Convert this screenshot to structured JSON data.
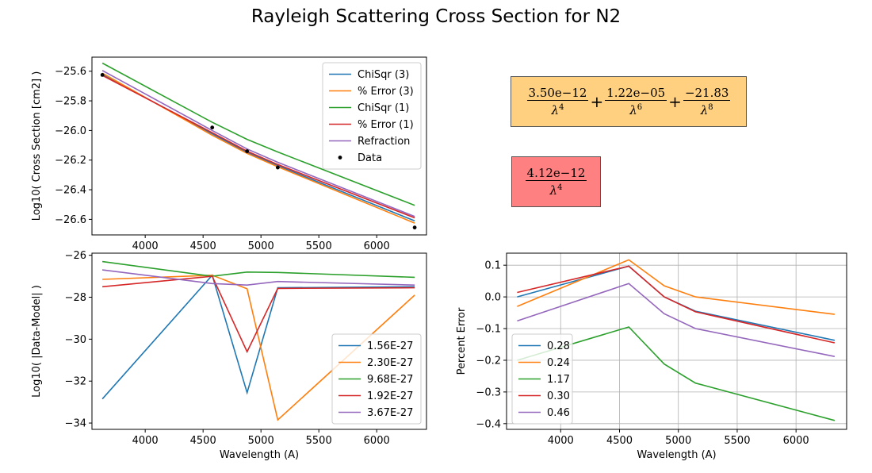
{
  "suptitle": "Rayleigh Scattering Cross Section for N2",
  "equations": {
    "fit3": {
      "terms": [
        {
          "num": "3.50e−12",
          "den": "λ",
          "pow": "4"
        },
        {
          "num": "1.22e−05",
          "den": "λ",
          "pow": "6"
        },
        {
          "num": "−21.83",
          "den": "λ",
          "pow": "8"
        }
      ],
      "plus": "+",
      "color": "#ffd080"
    },
    "fit1": {
      "terms": [
        {
          "num": "4.12e−12",
          "den": "λ",
          "pow": "4"
        }
      ],
      "color": "#ff8080"
    }
  },
  "chart_data": [
    {
      "type": "line",
      "id": "top-left",
      "xlabel": "",
      "ylabel": "Log10( Cross Section [cm2] )",
      "xlim": [
        3540,
        6430
      ],
      "ylim": [
        -26.705,
        -25.505
      ],
      "xticks": [
        4000,
        4500,
        5000,
        5500,
        6000
      ],
      "yticks": [
        -25.6,
        -25.8,
        -26.0,
        -26.2,
        -26.4,
        -26.6
      ],
      "ytick_labels": [
        "−25.6",
        "−25.8",
        "−26.0",
        "−26.2",
        "−26.4",
        "−26.6"
      ],
      "grid": false,
      "legend_loc": "upper-right",
      "x": [
        3630,
        4579,
        4880,
        5145,
        6328
      ],
      "series": [
        {
          "name": "ChiSqr (3)",
          "color": "#1f77b4",
          "values": [
            -25.622,
            -26.022,
            -26.148,
            -26.238,
            -26.61
          ]
        },
        {
          "name": "% Error (3)",
          "color": "#ff7f0e",
          "values": [
            -25.613,
            -26.032,
            -26.155,
            -26.245,
            -26.625
          ]
        },
        {
          "name": "ChiSqr (1)",
          "color": "#2ca02c",
          "values": [
            -25.545,
            -25.945,
            -26.06,
            -26.145,
            -26.505
          ]
        },
        {
          "name": "% Error (1)",
          "color": "#d62728",
          "values": [
            -25.628,
            -26.015,
            -26.14,
            -26.23,
            -26.59
          ]
        },
        {
          "name": "Refraction",
          "color": "#9467bd",
          "values": [
            -25.595,
            -26.0,
            -26.125,
            -26.215,
            -26.58
          ]
        }
      ],
      "points": {
        "name": "Data",
        "color": "#000000",
        "x": [
          3630,
          4579,
          4880,
          5145,
          6328
        ],
        "y": [
          -25.625,
          -25.98,
          -26.14,
          -26.25,
          -26.655
        ]
      }
    },
    {
      "type": "line",
      "id": "bottom-left",
      "xlabel": "Wavelength (A)",
      "ylabel": "Log10( |Data-Model| )",
      "xlim": [
        3540,
        6430
      ],
      "ylim": [
        -34.3,
        -25.9
      ],
      "xticks": [
        4000,
        4500,
        5000,
        5500,
        6000
      ],
      "yticks": [
        -26,
        -28,
        -30,
        -32,
        -34
      ],
      "ytick_labels": [
        "−26",
        "−28",
        "−30",
        "−32",
        "−34"
      ],
      "grid": false,
      "legend_loc": "lower-right",
      "x": [
        3630,
        4579,
        4880,
        5145,
        6328
      ],
      "series": [
        {
          "name": "1.56E-27",
          "color": "#1f77b4",
          "values": [
            -32.85,
            -26.95,
            -32.55,
            -27.55,
            -27.5
          ]
        },
        {
          "name": "2.30E-27",
          "color": "#ff7f0e",
          "values": [
            -27.15,
            -26.95,
            -27.6,
            -33.85,
            -27.9
          ]
        },
        {
          "name": "9.68E-27",
          "color": "#2ca02c",
          "values": [
            -26.3,
            -27.0,
            -26.8,
            -26.82,
            -27.05
          ]
        },
        {
          "name": "1.92E-27",
          "color": "#d62728",
          "values": [
            -27.5,
            -27.0,
            -30.6,
            -27.58,
            -27.55
          ]
        },
        {
          "name": "3.67E-27",
          "color": "#9467bd",
          "values": [
            -26.7,
            -27.35,
            -27.42,
            -27.25,
            -27.42
          ]
        }
      ]
    },
    {
      "type": "line",
      "id": "bottom-right",
      "xlabel": "Wavelength (A)",
      "ylabel": "Percent Error",
      "xlim": [
        3540,
        6430
      ],
      "ylim": [
        -0.418,
        0.138
      ],
      "xticks": [
        4000,
        4500,
        5000,
        5500,
        6000
      ],
      "yticks": [
        0.1,
        0.0,
        -0.1,
        -0.2,
        -0.3,
        -0.4
      ],
      "ytick_labels": [
        "0.1",
        "0.0",
        "−0.1",
        "−0.2",
        "−0.3",
        "−0.4"
      ],
      "grid": true,
      "legend_loc": "lower-left",
      "x": [
        3630,
        4579,
        4880,
        5145,
        6328
      ],
      "series": [
        {
          "name": "0.28",
          "color": "#1f77b4",
          "values": [
            0.0,
            0.097,
            0.0,
            -0.045,
            -0.137
          ]
        },
        {
          "name": "0.24",
          "color": "#ff7f0e",
          "values": [
            -0.03,
            0.117,
            0.035,
            0.0,
            -0.055
          ]
        },
        {
          "name": "1.17",
          "color": "#2ca02c",
          "values": [
            -0.2,
            -0.095,
            -0.212,
            -0.272,
            -0.39
          ]
        },
        {
          "name": "0.30",
          "color": "#d62728",
          "values": [
            0.014,
            0.097,
            0.0,
            -0.047,
            -0.145
          ]
        },
        {
          "name": "0.46",
          "color": "#9467bd",
          "values": [
            -0.076,
            0.042,
            -0.053,
            -0.1,
            -0.188
          ]
        }
      ]
    }
  ]
}
